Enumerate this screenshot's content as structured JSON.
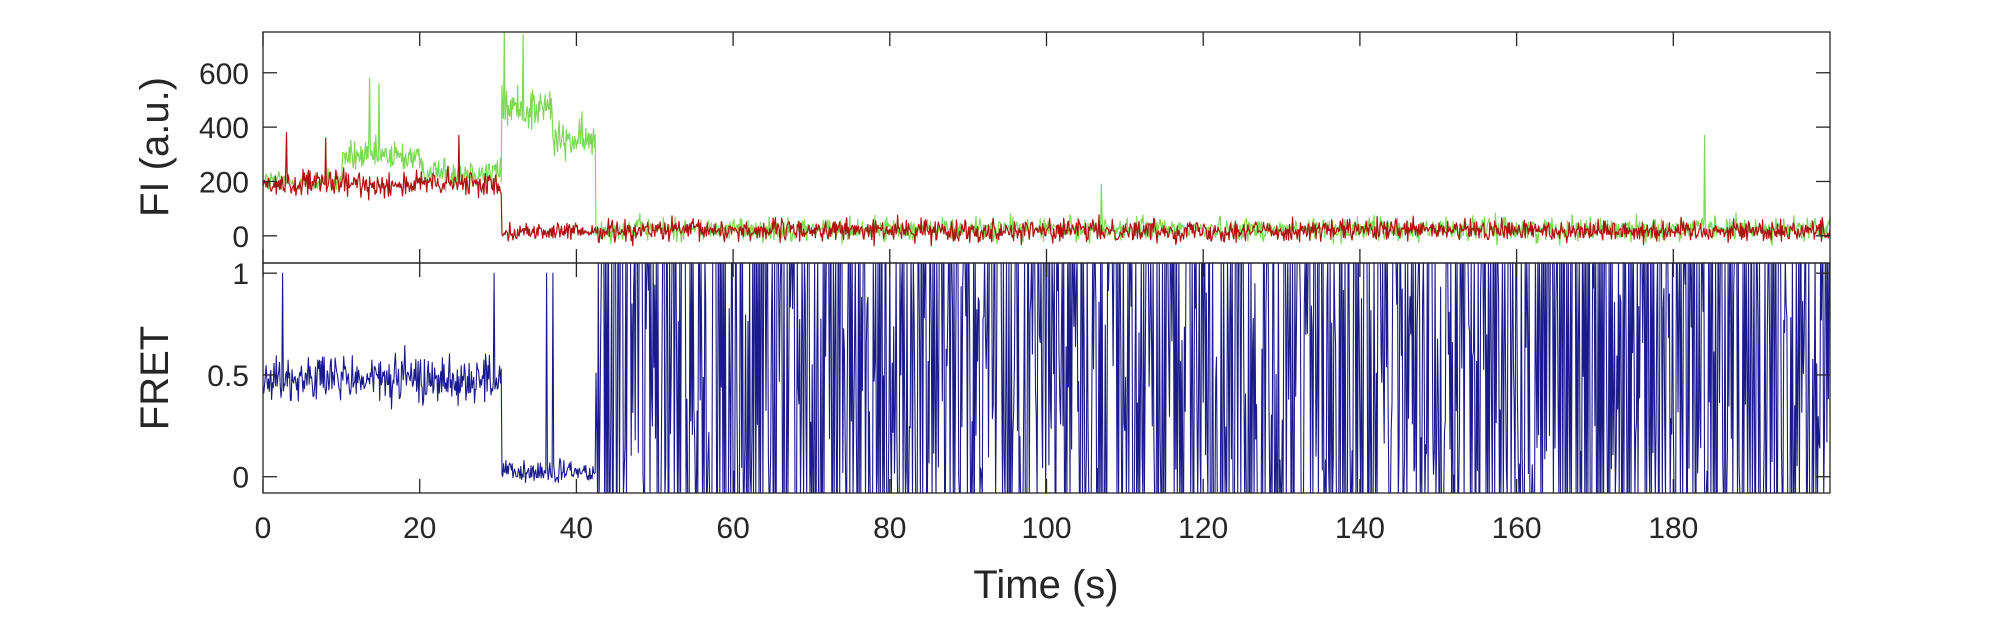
{
  "chart_data": [
    {
      "type": "line",
      "title": "",
      "xlabel": "",
      "ylabel": "FI (a.u.)",
      "xlim": [
        0,
        200
      ],
      "ylim": [
        -100,
        750
      ],
      "xticks": [
        0,
        20,
        40,
        60,
        80,
        100,
        120,
        140,
        160,
        180
      ],
      "yticks": [
        0,
        200,
        400,
        600
      ],
      "ytick_labels": [
        "0",
        "200",
        "400",
        "600"
      ],
      "grid": false,
      "legend": "none",
      "x_step_s": 0.1,
      "series": [
        {
          "color": "#7ed957",
          "segments": [
            {
              "x0": 0,
              "x1": 10,
              "level": 200,
              "noise": 45
            },
            {
              "x0": 10,
              "x1": 20,
              "level": 290,
              "noise": 60
            },
            {
              "x0": 20,
              "x1": 30.5,
              "level": 235,
              "noise": 55
            },
            {
              "x0": 30.5,
              "x1": 37,
              "level": 470,
              "noise": 90
            },
            {
              "x0": 37,
              "x1": 42.5,
              "level": 350,
              "noise": 70
            },
            {
              "x0": 42.5,
              "x1": 200,
              "level": 25,
              "noise": 42
            }
          ],
          "spikes": [
            [
              13.6,
              580
            ],
            [
              14.8,
              560
            ],
            [
              30.8,
              750
            ],
            [
              33.2,
              740
            ],
            [
              42,
              300
            ],
            [
              184,
              370
            ],
            [
              107,
              190
            ]
          ]
        },
        {
          "color": "#b01010",
          "segments": [
            {
              "x0": 0,
              "x1": 30.5,
              "level": 190,
              "noise": 48
            },
            {
              "x0": 30.5,
              "x1": 42.5,
              "level": 15,
              "noise": 30
            },
            {
              "x0": 42.5,
              "x1": 200,
              "level": 20,
              "noise": 40
            }
          ],
          "spikes": [
            [
              3,
              380
            ],
            [
              8,
              360
            ],
            [
              25,
              370
            ]
          ]
        }
      ]
    },
    {
      "type": "line",
      "title": "",
      "xlabel": "Time (s)",
      "ylabel": "FRET",
      "xlim": [
        0,
        200
      ],
      "ylim": [
        -0.08,
        1.05
      ],
      "xticks": [
        0,
        20,
        40,
        60,
        80,
        100,
        120,
        140,
        160,
        180
      ],
      "xtick_labels": [
        "0",
        "20",
        "40",
        "60",
        "80",
        "100",
        "120",
        "140",
        "160",
        "180"
      ],
      "yticks": [
        0,
        0.5,
        1
      ],
      "ytick_labels": [
        "0",
        "0.5",
        "1"
      ],
      "grid": false,
      "legend": "none",
      "x_step_s": 0.1,
      "series": [
        {
          "color": "#1a1a8c",
          "segments": [
            {
              "x0": 0,
              "x1": 30.5,
              "level": 0.48,
              "noise": 0.12
            },
            {
              "x0": 30.5,
              "x1": 42.5,
              "level": 0.02,
              "noise": 0.06
            },
            {
              "x0": 42.5,
              "x1": 200,
              "level": 0.5,
              "noise": 1.0
            }
          ],
          "spikes": [
            [
              2.5,
              1.0
            ],
            [
              29.5,
              1.0
            ],
            [
              36.2,
              1.0
            ],
            [
              37.0,
              1.0
            ]
          ]
        }
      ]
    }
  ]
}
